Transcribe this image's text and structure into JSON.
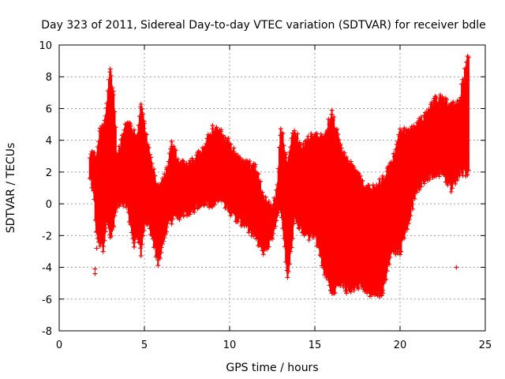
{
  "chart_data": {
    "type": "scatter",
    "title": "Day 323 of 2011, Sidereal Day-to-day VTEC variation (SDTVAR) for receiver bdle",
    "xlabel": "GPS time / hours",
    "ylabel": "SDTVAR / TECUs",
    "xlim": [
      0,
      25
    ],
    "ylim": [
      -8,
      10
    ],
    "x_ticks": [
      0,
      5,
      10,
      15,
      20,
      25
    ],
    "y_ticks": [
      -8,
      -6,
      -4,
      -2,
      0,
      2,
      4,
      6,
      8,
      10
    ],
    "x_tick_labels": [
      "0",
      "5",
      "10",
      "15",
      "20",
      "25"
    ],
    "y_tick_labels": [
      "-8",
      "-6",
      "-4",
      "-2",
      "0",
      "2",
      "4",
      "6",
      "8",
      "10"
    ],
    "grid": true,
    "marker": "+",
    "color": "#ff0000",
    "series": [
      {
        "name": "SDTVAR",
        "envelope": [
          {
            "x": 1.8,
            "low": 1.5,
            "high": 3.0
          },
          {
            "x": 2.0,
            "low": 1.0,
            "high": 3.1
          },
          {
            "x": 2.2,
            "low": -2.0,
            "high": 2.8
          },
          {
            "x": 2.4,
            "low": -2.5,
            "high": 4.8
          },
          {
            "x": 2.6,
            "low": -2.8,
            "high": 4.8
          },
          {
            "x": 2.8,
            "low": -1.0,
            "high": 6.5
          },
          {
            "x": 3.0,
            "low": -2.0,
            "high": 8.5
          },
          {
            "x": 3.2,
            "low": -1.5,
            "high": 7.0
          },
          {
            "x": 3.4,
            "low": 0.0,
            "high": 3.0
          },
          {
            "x": 4.0,
            "low": 0.0,
            "high": 5.2
          },
          {
            "x": 4.2,
            "low": -1.5,
            "high": 5.0
          },
          {
            "x": 4.4,
            "low": -2.5,
            "high": 4.5
          },
          {
            "x": 4.6,
            "low": -2.0,
            "high": 4.0
          },
          {
            "x": 4.8,
            "low": -3.0,
            "high": 6.5
          },
          {
            "x": 5.0,
            "low": -1.5,
            "high": 5.0
          },
          {
            "x": 5.2,
            "low": -1.0,
            "high": 3.5
          },
          {
            "x": 5.8,
            "low": -3.7,
            "high": 1.0
          },
          {
            "x": 6.0,
            "low": -3.0,
            "high": 1.5
          },
          {
            "x": 6.3,
            "low": -1.5,
            "high": 2.0
          },
          {
            "x": 6.6,
            "low": -1.0,
            "high": 3.8
          },
          {
            "x": 7.0,
            "low": -0.8,
            "high": 2.6
          },
          {
            "x": 7.5,
            "low": -0.5,
            "high": 2.5
          },
          {
            "x": 8.0,
            "low": -0.2,
            "high": 2.8
          },
          {
            "x": 8.5,
            "low": 0.0,
            "high": 3.5
          },
          {
            "x": 9.0,
            "low": 0.0,
            "high": 4.7
          },
          {
            "x": 9.5,
            "low": 0.5,
            "high": 4.4
          },
          {
            "x": 10.0,
            "low": -0.5,
            "high": 3.8
          },
          {
            "x": 10.5,
            "low": -1.0,
            "high": 2.8
          },
          {
            "x": 11.0,
            "low": -1.5,
            "high": 2.5
          },
          {
            "x": 11.5,
            "low": -2.0,
            "high": 2.2
          },
          {
            "x": 12.0,
            "low": -3.2,
            "high": 0.5
          },
          {
            "x": 12.5,
            "low": -2.0,
            "high": -0.5
          },
          {
            "x": 12.8,
            "low": -1.0,
            "high": 1.0
          },
          {
            "x": 13.0,
            "low": 0.0,
            "high": 5.0
          },
          {
            "x": 13.4,
            "low": -4.7,
            "high": 2.5
          },
          {
            "x": 13.8,
            "low": -1.0,
            "high": 4.8
          },
          {
            "x": 14.2,
            "low": -1.5,
            "high": 3.5
          },
          {
            "x": 14.6,
            "low": -2.0,
            "high": 4.0
          },
          {
            "x": 15.0,
            "low": -2.0,
            "high": 4.5
          },
          {
            "x": 15.5,
            "low": -4.0,
            "high": 4.0
          },
          {
            "x": 16.0,
            "low": -5.5,
            "high": 5.8
          },
          {
            "x": 16.5,
            "low": -5.0,
            "high": 3.5
          },
          {
            "x": 17.0,
            "low": -5.5,
            "high": 2.5
          },
          {
            "x": 17.5,
            "low": -5.0,
            "high": 2.0
          },
          {
            "x": 18.0,
            "low": -5.5,
            "high": 1.0
          },
          {
            "x": 18.5,
            "low": -5.7,
            "high": 1.0
          },
          {
            "x": 19.0,
            "low": -5.5,
            "high": 1.5
          },
          {
            "x": 19.5,
            "low": -3.0,
            "high": 2.5
          },
          {
            "x": 20.0,
            "low": -3.0,
            "high": 4.5
          },
          {
            "x": 20.5,
            "low": -1.0,
            "high": 4.5
          },
          {
            "x": 21.0,
            "low": 1.0,
            "high": 5.0
          },
          {
            "x": 21.5,
            "low": 1.5,
            "high": 5.5
          },
          {
            "x": 22.0,
            "low": 2.0,
            "high": 6.5
          },
          {
            "x": 22.5,
            "low": 2.0,
            "high": 6.7
          },
          {
            "x": 23.0,
            "low": 1.0,
            "high": 6.0
          },
          {
            "x": 23.5,
            "low": 2.0,
            "high": 6.5
          },
          {
            "x": 23.9,
            "low": 2.0,
            "high": 9.0
          }
        ],
        "outliers": [
          {
            "x": 2.1,
            "y": -4.4
          },
          {
            "x": 2.1,
            "y": -4.1
          },
          {
            "x": 2.2,
            "y": -2.8
          },
          {
            "x": 23.3,
            "y": -4.0
          }
        ]
      }
    ]
  }
}
